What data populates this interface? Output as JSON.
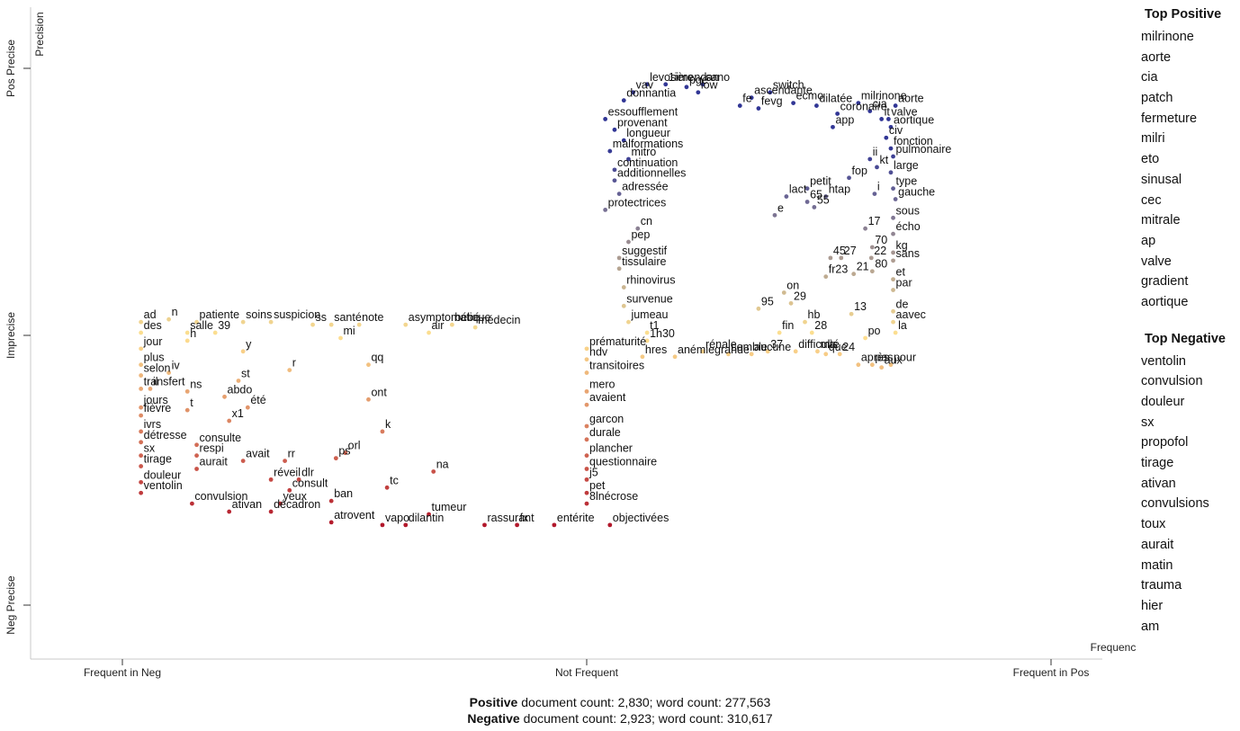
{
  "chart_data": {
    "type": "scatter",
    "x_axis": {
      "title": "Frequency",
      "tick_labels": [
        "Frequent in Neg",
        "Not Frequent",
        "Frequent in Pos"
      ]
    },
    "y_axis": {
      "title": "Precision",
      "tick_labels": [
        "Pos Precise",
        "Imprecise",
        "Neg Precise"
      ]
    },
    "grid": false,
    "color_scale": {
      "negative": "#b2182b",
      "neutral": "#fee090",
      "positive": "#313695"
    },
    "terms": [
      {
        "t": "levosimendan",
        "x": 0.13,
        "y": 0.94
      },
      {
        "t": "1ière",
        "x": 0.17,
        "y": 0.94
      },
      {
        "t": "pge",
        "x": 0.215,
        "y": 0.93
      },
      {
        "t": "sano",
        "x": 0.25,
        "y": 0.94
      },
      {
        "t": "vav",
        "x": 0.1,
        "y": 0.91
      },
      {
        "t": "low",
        "x": 0.24,
        "y": 0.91
      },
      {
        "t": "switch",
        "x": 0.395,
        "y": 0.91
      },
      {
        "t": "ascendante",
        "x": 0.355,
        "y": 0.89
      },
      {
        "t": "donnantia",
        "x": 0.08,
        "y": 0.88
      },
      {
        "t": "ecmo",
        "x": 0.445,
        "y": 0.87
      },
      {
        "t": "dilatée",
        "x": 0.495,
        "y": 0.86
      },
      {
        "t": "milrinone",
        "x": 0.585,
        "y": 0.87
      },
      {
        "t": "aorte",
        "x": 0.665,
        "y": 0.86
      },
      {
        "t": "fe",
        "x": 0.33,
        "y": 0.86
      },
      {
        "t": "fevg",
        "x": 0.37,
        "y": 0.85
      },
      {
        "t": "coronaire",
        "x": 0.54,
        "y": 0.83
      },
      {
        "t": "cia",
        "x": 0.61,
        "y": 0.84
      },
      {
        "t": "essoufflement",
        "x": 0.04,
        "y": 0.81
      },
      {
        "t": "it",
        "x": 0.635,
        "y": 0.81
      },
      {
        "t": "valve",
        "x": 0.65,
        "y": 0.81
      },
      {
        "t": "app",
        "x": 0.53,
        "y": 0.78
      },
      {
        "t": "provenant",
        "x": 0.06,
        "y": 0.77
      },
      {
        "t": "aortique",
        "x": 0.655,
        "y": 0.78
      },
      {
        "t": "longueur",
        "x": 0.08,
        "y": 0.73
      },
      {
        "t": "civ",
        "x": 0.645,
        "y": 0.74
      },
      {
        "t": "malformations",
        "x": 0.05,
        "y": 0.69
      },
      {
        "t": "fonction",
        "x": 0.655,
        "y": 0.7
      },
      {
        "t": "pulmonaire",
        "x": 0.66,
        "y": 0.67
      },
      {
        "t": "mitro",
        "x": 0.09,
        "y": 0.66
      },
      {
        "t": "ii",
        "x": 0.61,
        "y": 0.66
      },
      {
        "t": "kt",
        "x": 0.625,
        "y": 0.63
      },
      {
        "t": "continuation",
        "x": 0.06,
        "y": 0.62
      },
      {
        "t": "large",
        "x": 0.655,
        "y": 0.61
      },
      {
        "t": "fop",
        "x": 0.565,
        "y": 0.59
      },
      {
        "t": "additionnelles",
        "x": 0.06,
        "y": 0.58
      },
      {
        "t": "petit",
        "x": 0.475,
        "y": 0.55
      },
      {
        "t": "i",
        "x": 0.62,
        "y": 0.53
      },
      {
        "t": "type",
        "x": 0.66,
        "y": 0.55
      },
      {
        "t": "adressée",
        "x": 0.07,
        "y": 0.53
      },
      {
        "t": "lact",
        "x": 0.43,
        "y": 0.52
      },
      {
        "t": "htap",
        "x": 0.515,
        "y": 0.52
      },
      {
        "t": "65",
        "x": 0.475,
        "y": 0.5
      },
      {
        "t": "gauche",
        "x": 0.665,
        "y": 0.51
      },
      {
        "t": "protectrices",
        "x": 0.04,
        "y": 0.47
      },
      {
        "t": "55",
        "x": 0.49,
        "y": 0.48
      },
      {
        "t": "e",
        "x": 0.405,
        "y": 0.45
      },
      {
        "t": "sous",
        "x": 0.66,
        "y": 0.44
      },
      {
        "t": "cn",
        "x": 0.11,
        "y": 0.4
      },
      {
        "t": "17",
        "x": 0.6,
        "y": 0.4
      },
      {
        "t": "écho",
        "x": 0.66,
        "y": 0.38
      },
      {
        "t": "pep",
        "x": 0.09,
        "y": 0.35
      },
      {
        "t": "70",
        "x": 0.615,
        "y": 0.33
      },
      {
        "t": "kg",
        "x": 0.66,
        "y": 0.31
      },
      {
        "t": "suggestif",
        "x": 0.07,
        "y": 0.29
      },
      {
        "t": "45",
        "x": 0.525,
        "y": 0.29
      },
      {
        "t": "27",
        "x": 0.548,
        "y": 0.29
      },
      {
        "t": "22",
        "x": 0.613,
        "y": 0.29
      },
      {
        "t": "sans",
        "x": 0.66,
        "y": 0.28
      },
      {
        "t": "tissulaire",
        "x": 0.07,
        "y": 0.25
      },
      {
        "t": "80",
        "x": 0.615,
        "y": 0.24
      },
      {
        "t": "fr23",
        "x": 0.515,
        "y": 0.22
      },
      {
        "t": "21",
        "x": 0.575,
        "y": 0.23
      },
      {
        "t": "et",
        "x": 0.66,
        "y": 0.21
      },
      {
        "t": "rhinovirus",
        "x": 0.08,
        "y": 0.18
      },
      {
        "t": "par",
        "x": 0.66,
        "y": 0.17
      },
      {
        "t": "on",
        "x": 0.425,
        "y": 0.16
      },
      {
        "t": "survenue",
        "x": 0.08,
        "y": 0.11
      },
      {
        "t": "29",
        "x": 0.44,
        "y": 0.12
      },
      {
        "t": "95",
        "x": 0.37,
        "y": 0.1
      },
      {
        "t": "de",
        "x": 0.66,
        "y": 0.09
      },
      {
        "t": "13",
        "x": 0.57,
        "y": 0.08
      },
      {
        "t": "jumeau",
        "x": 0.09,
        "y": 0.05
      },
      {
        "t": "aavec",
        "x": 0.66,
        "y": 0.05
      },
      {
        "t": "hb",
        "x": 0.47,
        "y": 0.05
      },
      {
        "t": "la",
        "x": 0.665,
        "y": 0.01
      },
      {
        "t": "t1",
        "x": 0.13,
        "y": 0.01
      },
      {
        "t": "1h30",
        "x": 0.13,
        "y": -0.02
      },
      {
        "t": "fin",
        "x": 0.415,
        "y": 0.01
      },
      {
        "t": "28",
        "x": 0.485,
        "y": 0.01
      },
      {
        "t": "po",
        "x": 0.6,
        "y": -0.01
      },
      {
        "t": "anémiegrande",
        "x": 0.19,
        "y": -0.08
      },
      {
        "t": "hres",
        "x": 0.12,
        "y": -0.08
      },
      {
        "t": "rénale",
        "x": 0.25,
        "y": -0.06
      },
      {
        "t": "semble",
        "x": 0.305,
        "y": -0.07
      },
      {
        "t": "aucune",
        "x": 0.355,
        "y": -0.07
      },
      {
        "t": "37",
        "x": 0.39,
        "y": -0.06
      },
      {
        "t": "difficulté",
        "x": 0.45,
        "y": -0.06
      },
      {
        "t": "mis",
        "x": 0.497,
        "y": -0.06
      },
      {
        "t": "que",
        "x": 0.515,
        "y": -0.07
      },
      {
        "t": "24",
        "x": 0.545,
        "y": -0.07
      },
      {
        "t": "après",
        "x": 0.585,
        "y": -0.11
      },
      {
        "t": "pas",
        "x": 0.615,
        "y": -0.11
      },
      {
        "t": "aux",
        "x": 0.635,
        "y": -0.12
      },
      {
        "t": "pour",
        "x": 0.655,
        "y": -0.11
      },
      {
        "t": "ad",
        "x": -0.96,
        "y": 0.05
      },
      {
        "t": "n",
        "x": -0.9,
        "y": 0.06
      },
      {
        "t": "patiente",
        "x": -0.84,
        "y": 0.05
      },
      {
        "t": "soins",
        "x": -0.74,
        "y": 0.05
      },
      {
        "t": "suspicion",
        "x": -0.68,
        "y": 0.05
      },
      {
        "t": "ss",
        "x": -0.59,
        "y": 0.04
      },
      {
        "t": "santé",
        "x": -0.55,
        "y": 0.04
      },
      {
        "t": "note",
        "x": -0.49,
        "y": 0.04
      },
      {
        "t": "asymptomatique",
        "x": -0.39,
        "y": 0.04
      },
      {
        "t": "bébé",
        "x": -0.29,
        "y": 0.04
      },
      {
        "t": "médecin",
        "x": -0.24,
        "y": 0.03
      },
      {
        "t": "air",
        "x": -0.34,
        "y": 0.01
      },
      {
        "t": "des",
        "x": -0.96,
        "y": 0.01
      },
      {
        "t": "salle",
        "x": -0.86,
        "y": 0.01
      },
      {
        "t": "39",
        "x": -0.8,
        "y": 0.01
      },
      {
        "t": "mi",
        "x": -0.53,
        "y": -0.01
      },
      {
        "t": "h",
        "x": -0.86,
        "y": -0.02
      },
      {
        "t": "jour",
        "x": -0.96,
        "y": -0.05
      },
      {
        "t": "prématurité",
        "x": 0.0,
        "y": -0.05
      },
      {
        "t": "y",
        "x": -0.74,
        "y": -0.06
      },
      {
        "t": "hdv",
        "x": 0.0,
        "y": -0.09
      },
      {
        "t": "plus",
        "x": -0.96,
        "y": -0.11
      },
      {
        "t": "qq",
        "x": -0.47,
        "y": -0.11
      },
      {
        "t": "iv",
        "x": -0.9,
        "y": -0.14
      },
      {
        "t": "r",
        "x": -0.64,
        "y": -0.13
      },
      {
        "t": "transitoires",
        "x": 0.0,
        "y": -0.14
      },
      {
        "t": "selon",
        "x": -0.96,
        "y": -0.15
      },
      {
        "t": "st",
        "x": -0.75,
        "y": -0.17
      },
      {
        "t": "transfert",
        "x": -0.96,
        "y": -0.2
      },
      {
        "t": "il",
        "x": -0.94,
        "y": -0.2
      },
      {
        "t": "mero",
        "x": 0.0,
        "y": -0.21
      },
      {
        "t": "ns",
        "x": -0.86,
        "y": -0.21
      },
      {
        "t": "abdo",
        "x": -0.78,
        "y": -0.23
      },
      {
        "t": "ont",
        "x": -0.47,
        "y": -0.24
      },
      {
        "t": "jours",
        "x": -0.96,
        "y": -0.27
      },
      {
        "t": "avaient",
        "x": 0.0,
        "y": -0.26
      },
      {
        "t": "t",
        "x": -0.86,
        "y": -0.28
      },
      {
        "t": "été",
        "x": -0.73,
        "y": -0.27
      },
      {
        "t": "fièvre",
        "x": -0.96,
        "y": -0.3
      },
      {
        "t": "x1",
        "x": -0.77,
        "y": -0.32
      },
      {
        "t": "ivrs",
        "x": -0.96,
        "y": -0.36
      },
      {
        "t": "k",
        "x": -0.44,
        "y": -0.36
      },
      {
        "t": "garcon",
        "x": 0.0,
        "y": -0.34
      },
      {
        "t": "durale",
        "x": 0.0,
        "y": -0.39
      },
      {
        "t": "détresse",
        "x": -0.96,
        "y": -0.4
      },
      {
        "t": "consulte",
        "x": -0.84,
        "y": -0.41
      },
      {
        "t": "sx",
        "x": -0.96,
        "y": -0.45
      },
      {
        "t": "respi",
        "x": -0.84,
        "y": -0.45
      },
      {
        "t": "plancher",
        "x": 0.0,
        "y": -0.45
      },
      {
        "t": "avait",
        "x": -0.74,
        "y": -0.47
      },
      {
        "t": "rr",
        "x": -0.65,
        "y": -0.47
      },
      {
        "t": "ps",
        "x": -0.54,
        "y": -0.46
      },
      {
        "t": "orl",
        "x": -0.52,
        "y": -0.44
      },
      {
        "t": "tirage",
        "x": -0.96,
        "y": -0.49
      },
      {
        "t": "aurait",
        "x": -0.84,
        "y": -0.5
      },
      {
        "t": "questionnaire",
        "x": 0.0,
        "y": -0.5
      },
      {
        "t": "na",
        "x": -0.33,
        "y": -0.51
      },
      {
        "t": "réveil",
        "x": -0.68,
        "y": -0.54
      },
      {
        "t": "dlr",
        "x": -0.62,
        "y": -0.54
      },
      {
        "t": "j5",
        "x": 0.0,
        "y": -0.54
      },
      {
        "t": "douleur",
        "x": -0.96,
        "y": -0.55
      },
      {
        "t": "tc",
        "x": -0.43,
        "y": -0.57
      },
      {
        "t": "consult",
        "x": -0.64,
        "y": -0.58
      },
      {
        "t": "ventolin",
        "x": -0.96,
        "y": -0.59
      },
      {
        "t": "pet",
        "x": 0.0,
        "y": -0.59
      },
      {
        "t": "ban",
        "x": -0.55,
        "y": -0.62
      },
      {
        "t": "convulsion",
        "x": -0.85,
        "y": -0.63
      },
      {
        "t": "yeux",
        "x": -0.66,
        "y": -0.63
      },
      {
        "t": "8lnécrose",
        "x": 0.0,
        "y": -0.63
      },
      {
        "t": "ativan",
        "x": -0.77,
        "y": -0.66
      },
      {
        "t": "décadron",
        "x": -0.68,
        "y": -0.66
      },
      {
        "t": "tumeur",
        "x": -0.34,
        "y": -0.67
      },
      {
        "t": "atrovent",
        "x": -0.55,
        "y": -0.7
      },
      {
        "t": "vapo",
        "x": -0.44,
        "y": -0.71
      },
      {
        "t": "dilantin",
        "x": -0.39,
        "y": -0.71
      },
      {
        "t": "rassurant",
        "x": -0.22,
        "y": -0.71
      },
      {
        "t": "fx",
        "x": -0.15,
        "y": -0.71
      },
      {
        "t": "entérite",
        "x": -0.07,
        "y": -0.71
      },
      {
        "t": "objectivées",
        "x": 0.05,
        "y": -0.71
      }
    ],
    "top_positive": [
      "milrinone",
      "aorte",
      "cia",
      "patch",
      "fermeture",
      "milri",
      "eto",
      "sinusal",
      "cec",
      "mitrale",
      "ap",
      "valve",
      "gradient",
      "aortique"
    ],
    "top_negative": [
      "ventolin",
      "convulsion",
      "douleur",
      "sx",
      "propofol",
      "tirage",
      "ativan",
      "convulsions",
      "toux",
      "aurait",
      "matin",
      "trauma",
      "hier",
      "am"
    ]
  },
  "sidebar": {
    "top_positive_title": "Top Positive",
    "top_negative_title": "Top Negative"
  },
  "footer": {
    "positive_word": "Positive",
    "positive_rest": "document count: 2,830; word count: 277,563",
    "negative_word": "Negative",
    "negative_rest": "document count: 2,923; word count: 310,617"
  }
}
